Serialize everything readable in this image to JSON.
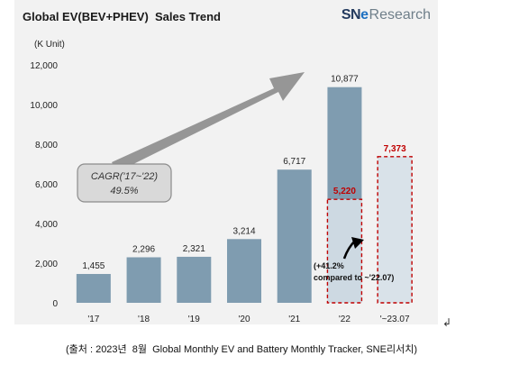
{
  "title": "Global EV(BEV+PHEV)  Sales Trend",
  "logo": {
    "sne": "SNE",
    "research": "Research"
  },
  "caption": "(출처 : 2023년  8월  Global Monthly EV and Battery Monthly Tracker, SNE리서치)",
  "mark": "↲",
  "colors": {
    "bar": "#7f9cb0",
    "dash_fill": "#d6e0e8",
    "dash_stroke": "#c00000",
    "label_red": "#c00000",
    "arrow_gray": "#969696"
  },
  "chart_data": {
    "type": "bar",
    "ylabel": "(K Unit)",
    "ylim": [
      0,
      12000
    ],
    "yticks": [
      "0",
      "2,000",
      "4,000",
      "6,000",
      "8,000",
      "10,000",
      "12,000"
    ],
    "categories": [
      "'17",
      "'18",
      "'19",
      "'20",
      "'21",
      "'22",
      "'~23.07"
    ],
    "series": [
      {
        "values": [
          1455,
          2296,
          2321,
          3214,
          6717,
          10877,
          null
        ],
        "labels": [
          "1,455",
          "2,296",
          "2,321",
          "3,214",
          "6,717",
          "10,877",
          ""
        ]
      },
      {
        "values": [
          null,
          null,
          null,
          null,
          null,
          5220,
          7373
        ],
        "labels": [
          "",
          "",
          "",
          "",
          "",
          "5,220",
          "7,373"
        ]
      }
    ],
    "annotations": {
      "cagr": [
        "CAGR('17~'22)",
        "49.5%"
      ],
      "growth": [
        "(+41.2%",
        "compared to ~'22.07)"
      ]
    }
  }
}
